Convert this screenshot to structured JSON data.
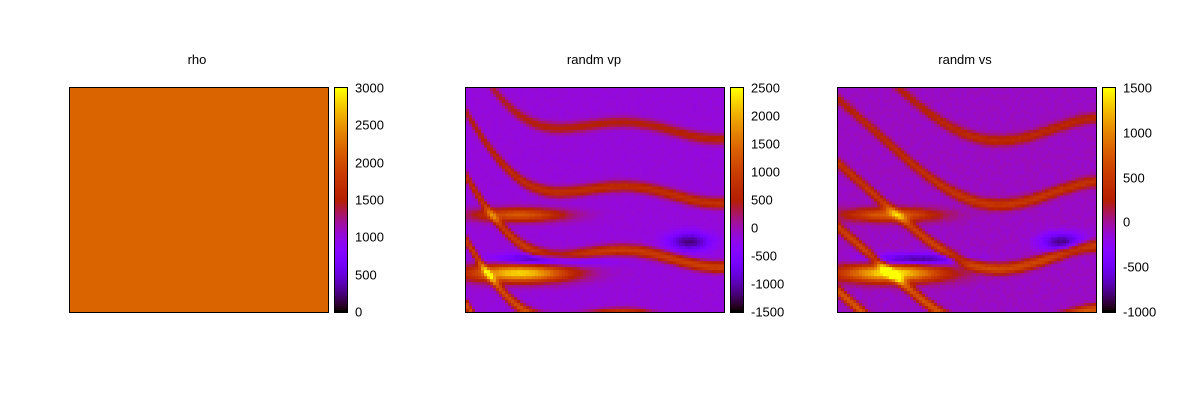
{
  "chart_data": [
    {
      "type": "heatmap",
      "title": "rho",
      "colormap": "gnuplot-pm3d",
      "colorbar": {
        "range": [
          0,
          3000
        ],
        "ticks": [
          "3000",
          "2500",
          "2000",
          "1500",
          "1000",
          "500",
          "0"
        ]
      },
      "field": {
        "pattern": "uniform",
        "value": 2200
      }
    },
    {
      "type": "heatmap",
      "title": "randm vp",
      "colormap": "gnuplot-pm3d",
      "colorbar": {
        "range": [
          -1500,
          2500
        ],
        "ticks": [
          "2500",
          "2000",
          "1500",
          "1000",
          "500",
          "0",
          "-500",
          "-1000",
          "-1500"
        ]
      },
      "field": {
        "pattern": "layered-random",
        "background": -150,
        "peak": 2300,
        "trough": -1300
      }
    },
    {
      "type": "heatmap",
      "title": "randm vs",
      "colormap": "gnuplot-pm3d",
      "colorbar": {
        "range": [
          -1000,
          1500
        ],
        "ticks": [
          "1500",
          "1000",
          "500",
          "0",
          "-500",
          "-1000"
        ]
      },
      "field": {
        "pattern": "layered-random",
        "background": -100,
        "peak": 1450,
        "trough": -850
      }
    }
  ]
}
